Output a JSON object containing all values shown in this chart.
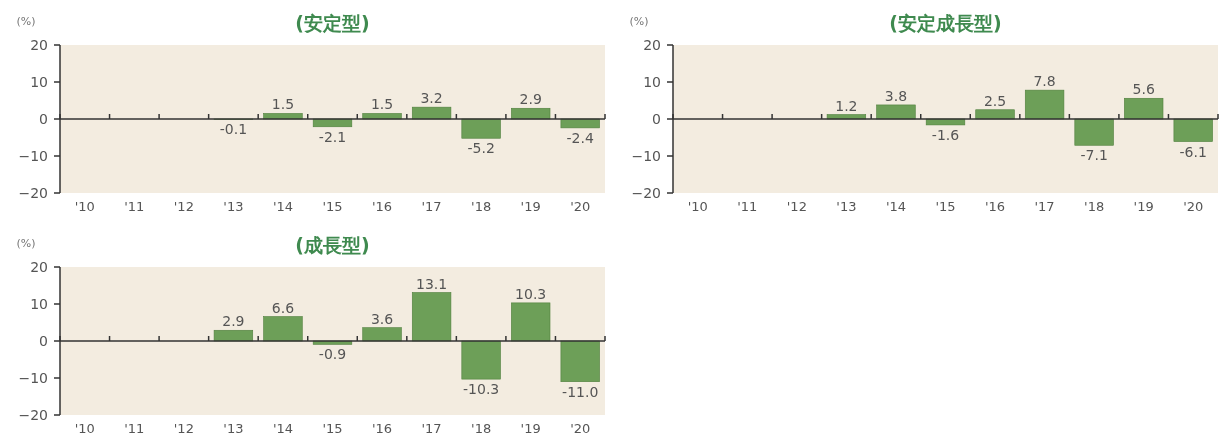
{
  "chart_data": [
    {
      "type": "bar",
      "title": "(安定型)",
      "ylabel": "(%)",
      "categories": [
        "'10",
        "'11",
        "'12",
        "'13",
        "'14",
        "'15",
        "'16",
        "'17",
        "'18",
        "'19",
        "'20"
      ],
      "values": [
        null,
        null,
        null,
        -0.1,
        1.5,
        -2.1,
        1.5,
        3.2,
        -5.2,
        2.9,
        -2.4
      ],
      "value_labels": [
        null,
        null,
        null,
        "-0.1",
        "1.5",
        "-2.1",
        "1.5",
        "3.2",
        "-5.2",
        "2.9",
        "-2.4"
      ],
      "color": "#6d9f58",
      "ylim": [
        -20,
        20
      ],
      "yticks": [
        -20,
        -10,
        0,
        10,
        20
      ]
    },
    {
      "type": "bar",
      "title": "(安定成長型)",
      "ylabel": "(%)",
      "categories": [
        "'10",
        "'11",
        "'12",
        "'13",
        "'14",
        "'15",
        "'16",
        "'17",
        "'18",
        "'19",
        "'20"
      ],
      "values": [
        null,
        null,
        null,
        1.2,
        3.8,
        -1.6,
        2.5,
        7.8,
        -7.1,
        5.6,
        -6.1
      ],
      "value_labels": [
        null,
        null,
        null,
        "1.2",
        "3.8",
        "-1.6",
        "2.5",
        "7.8",
        "-7.1",
        "5.6",
        "-6.1"
      ],
      "color": "#6d9f58",
      "ylim": [
        -20,
        20
      ],
      "yticks": [
        -20,
        -10,
        0,
        10,
        20
      ]
    },
    {
      "type": "bar",
      "title": "(成長型)",
      "ylabel": "(%)",
      "categories": [
        "'10",
        "'11",
        "'12",
        "'13",
        "'14",
        "'15",
        "'16",
        "'17",
        "'18",
        "'19",
        "'20"
      ],
      "values": [
        null,
        null,
        null,
        2.9,
        6.6,
        -0.9,
        3.6,
        13.1,
        -10.3,
        10.3,
        -11.0
      ],
      "value_labels": [
        null,
        null,
        null,
        "2.9",
        "6.6",
        "-0.9",
        "3.6",
        "13.1",
        "-10.3",
        "10.3",
        "-11.0"
      ],
      "color": "#6d9f58",
      "ylim": [
        -20,
        20
      ],
      "yticks": [
        -20,
        -10,
        0,
        10,
        20
      ]
    }
  ]
}
